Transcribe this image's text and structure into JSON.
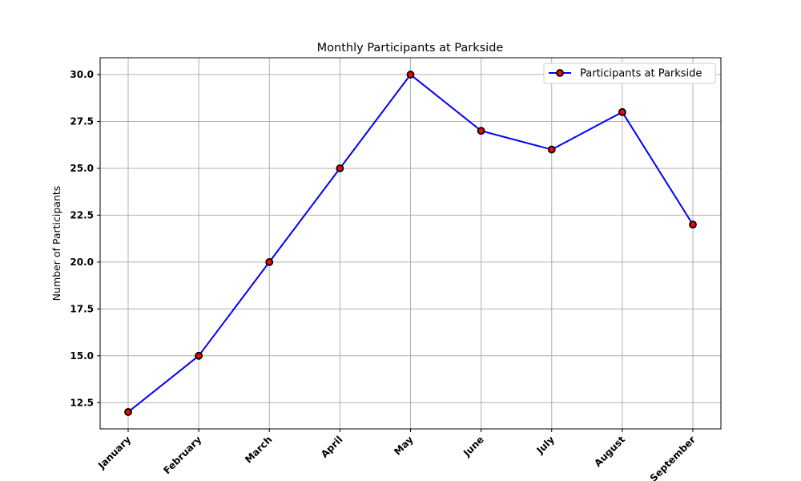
{
  "chart_data": {
    "type": "line",
    "title": "Monthly Participants at Parkside",
    "xlabel": "",
    "ylabel": "Number of Participants",
    "categories": [
      "January",
      "February",
      "March",
      "April",
      "May",
      "June",
      "July",
      "August",
      "September"
    ],
    "series": [
      {
        "name": "Participants at Parkside",
        "values": [
          12,
          15,
          20,
          25,
          30,
          27,
          26,
          28,
          22
        ],
        "line_color": "#0000ff",
        "marker_face": "#ff0000",
        "marker_edge": "#000000"
      }
    ],
    "ylim": [
      11.1,
      30.9
    ],
    "yticks": [
      "12.5",
      "15.0",
      "17.5",
      "20.0",
      "22.5",
      "25.0",
      "27.5",
      "30.0"
    ],
    "grid": true,
    "legend": "top-right"
  }
}
